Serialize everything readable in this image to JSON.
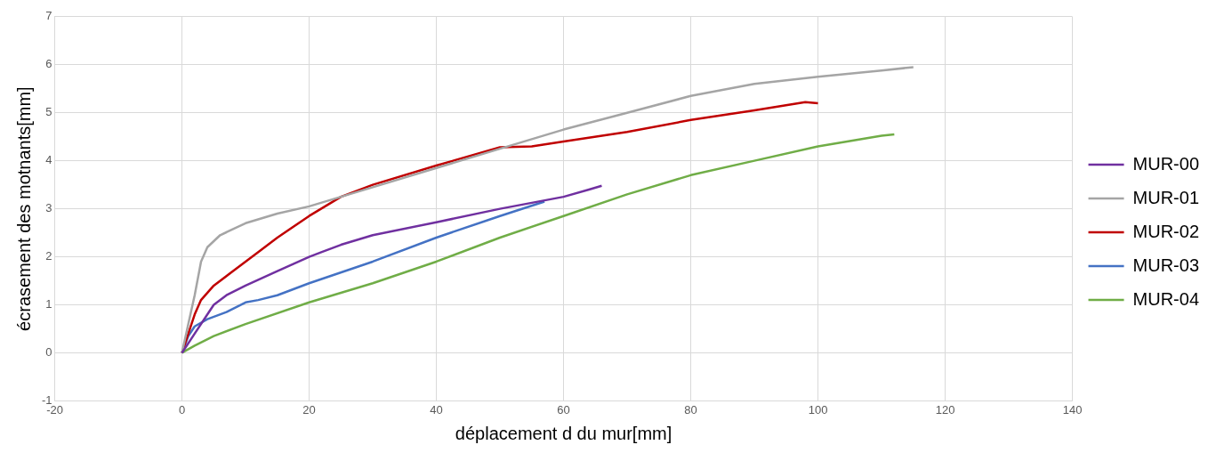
{
  "chart_data": {
    "type": "line",
    "xlabel": "déplacement d du mur[mm]",
    "ylabel": "écrasement des motnants[mm]",
    "xlim": [
      -20,
      140
    ],
    "xticks": [
      -20,
      0,
      20,
      40,
      60,
      80,
      100,
      120,
      140
    ],
    "ylim": [
      -1,
      7
    ],
    "yticks": [
      -1,
      0,
      1,
      2,
      3,
      4,
      5,
      6,
      7
    ],
    "grid": true,
    "legend": "right",
    "marker": "none",
    "line_style": "solid",
    "series": [
      {
        "name": "MUR-00",
        "color": "#7030a0",
        "x": [
          0,
          2,
          4,
          5,
          7,
          10,
          15,
          20,
          22,
          25,
          30,
          40,
          50,
          60,
          64,
          66
        ],
        "values": [
          0,
          0.4,
          0.8,
          1.0,
          1.2,
          1.4,
          1.7,
          2.0,
          2.1,
          2.25,
          2.45,
          2.72,
          3.0,
          3.25,
          3.4,
          3.48
        ]
      },
      {
        "name": "MUR-01",
        "color": "#a5a5a5",
        "x": [
          0,
          1,
          2,
          3,
          4,
          6,
          10,
          15,
          20,
          25,
          30,
          40,
          50,
          60,
          70,
          80,
          90,
          100,
          110,
          115
        ],
        "values": [
          0,
          0.6,
          1.2,
          1.9,
          2.2,
          2.45,
          2.7,
          2.9,
          3.05,
          3.25,
          3.45,
          3.85,
          4.25,
          4.65,
          5.0,
          5.35,
          5.6,
          5.75,
          5.88,
          5.95
        ]
      },
      {
        "name": "MUR-02",
        "color": "#c00000",
        "x": [
          0,
          1,
          2,
          3,
          5,
          8,
          12,
          15,
          20,
          25,
          30,
          40,
          50,
          55,
          60,
          70,
          80,
          90,
          98,
          100
        ],
        "values": [
          0,
          0.4,
          0.8,
          1.1,
          1.4,
          1.7,
          2.1,
          2.4,
          2.85,
          3.25,
          3.5,
          3.9,
          4.28,
          4.3,
          4.4,
          4.6,
          4.85,
          5.05,
          5.22,
          5.2
        ]
      },
      {
        "name": "MUR-03",
        "color": "#4472c4",
        "x": [
          0,
          1,
          2,
          4,
          7,
          10,
          12,
          15,
          20,
          30,
          40,
          50,
          57
        ],
        "values": [
          0,
          0.35,
          0.55,
          0.7,
          0.85,
          1.05,
          1.1,
          1.2,
          1.45,
          1.9,
          2.4,
          2.85,
          3.15
        ]
      },
      {
        "name": "MUR-04",
        "color": "#70ad47",
        "x": [
          0,
          2,
          5,
          10,
          20,
          30,
          40,
          50,
          60,
          70,
          80,
          90,
          100,
          110,
          112
        ],
        "values": [
          0,
          0.15,
          0.35,
          0.6,
          1.05,
          1.45,
          1.9,
          2.4,
          2.85,
          3.3,
          3.7,
          4.0,
          4.3,
          4.52,
          4.55
        ]
      }
    ]
  }
}
